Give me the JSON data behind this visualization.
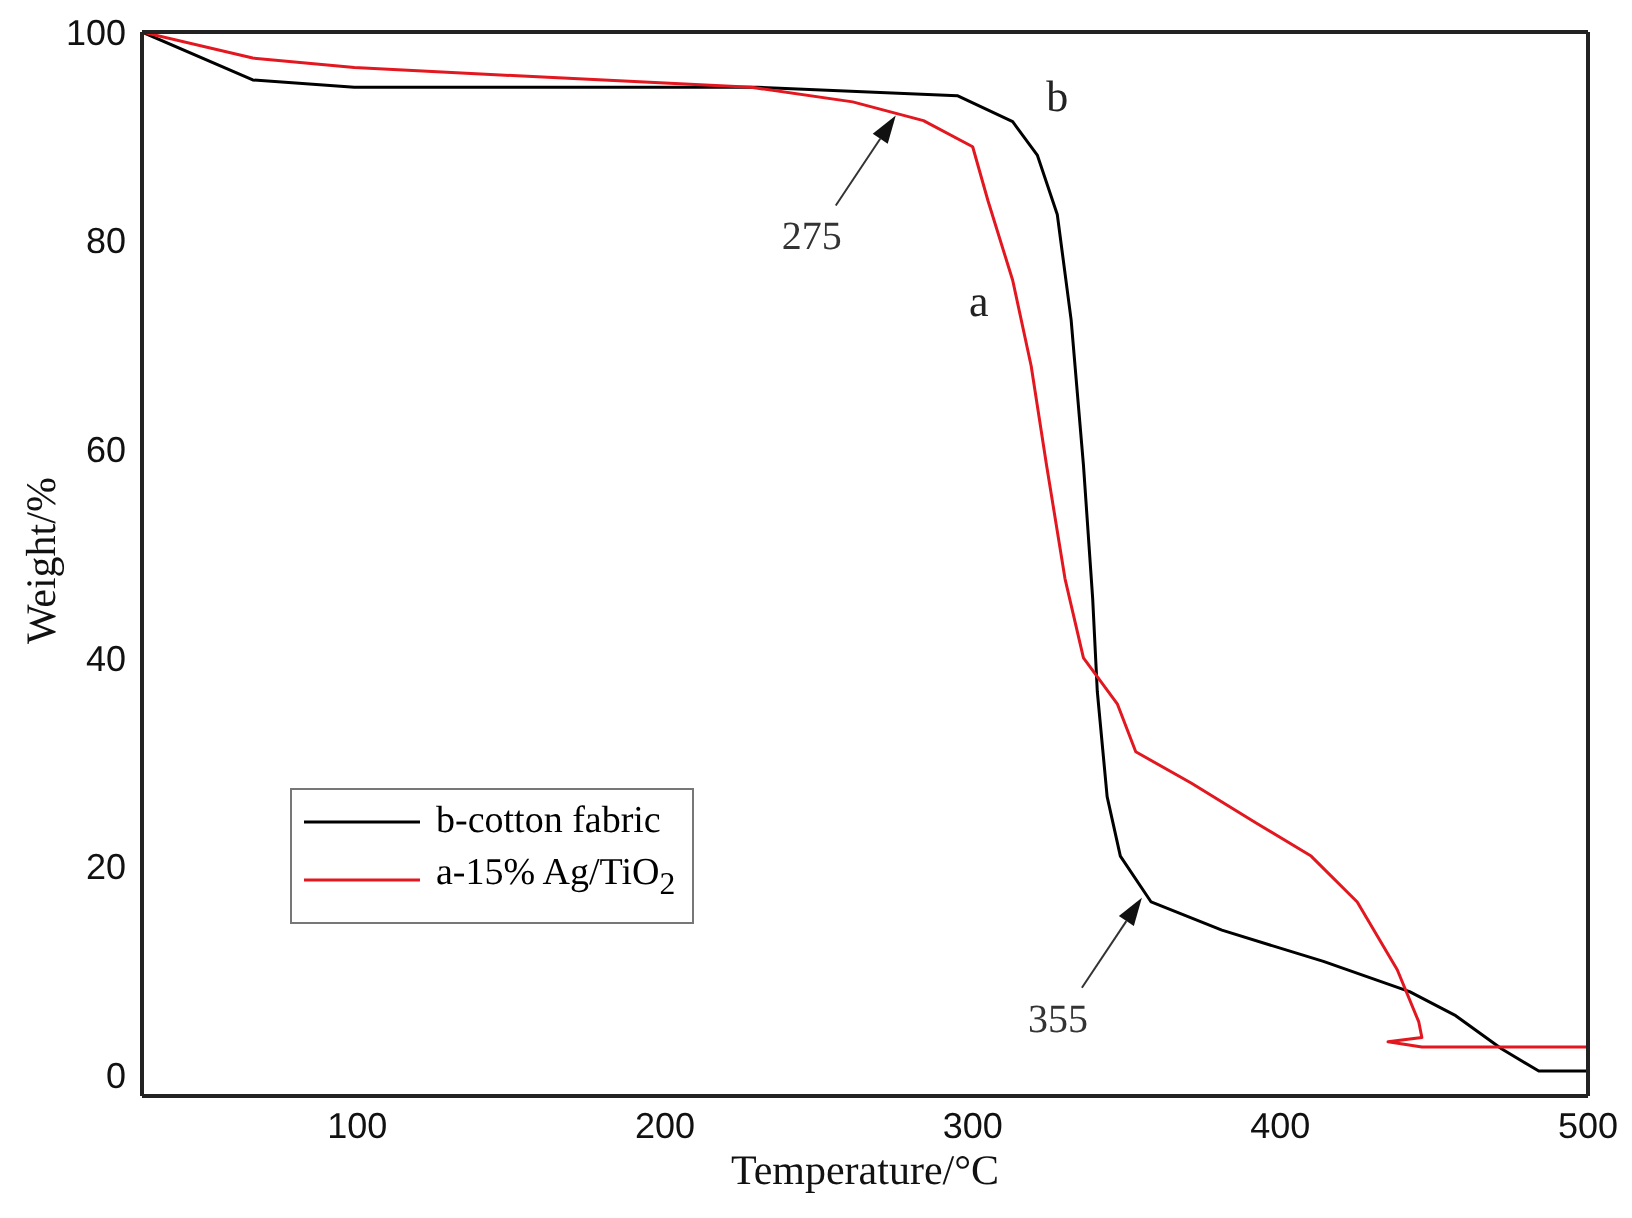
{
  "chart_data": {
    "type": "line",
    "xlabel": "Temperature/°C",
    "ylabel": "Weight/%",
    "xlim": [
      30,
      500
    ],
    "xticks": [
      100,
      200,
      300,
      400,
      500
    ],
    "ylim": [
      -2,
      100
    ],
    "yticks": [
      0,
      20,
      40,
      60,
      80,
      100
    ],
    "grid": false,
    "legend": "bottom left",
    "marker": "none",
    "line_style": "solid",
    "series": [
      {
        "name": "b-cotton fabric",
        "color": "#000000",
        "x": [
          30,
          66,
          99,
          230,
          295,
          313,
          321,
          327.5,
          332,
          336,
          339,
          340.5,
          343.7,
          348,
          358,
          381,
          414,
          442,
          457,
          472,
          484,
          500
        ],
        "values": [
          100,
          95.4,
          94.7,
          94.7,
          93.9,
          91.4,
          88.2,
          82.5,
          72.4,
          58.5,
          45.7,
          36.8,
          26.7,
          21,
          16.6,
          13.9,
          10.9,
          8,
          5.7,
          2.5,
          0.4,
          0.4
        ]
      },
      {
        "name": "a-15% Ag/TiO$_{2}$",
        "color": "#e3171f",
        "x": [
          30,
          66,
          99,
          152,
          228,
          261,
          284,
          300,
          305,
          313,
          319,
          324,
          330,
          336,
          347,
          353,
          371,
          392,
          410,
          425,
          438,
          445,
          446,
          435,
          446,
          500
        ],
        "values": [
          100,
          97.5,
          96.6,
          95.8,
          94.7,
          93.3,
          91.5,
          89,
          83.8,
          76.2,
          68,
          58.5,
          47.6,
          40,
          35.6,
          31,
          28,
          24.2,
          21,
          16.6,
          10.1,
          5.1,
          3.6,
          3.2,
          2.7,
          2.7
        ]
      }
    ],
    "annotations": [
      {
        "text": "275",
        "x": 275,
        "y": 92
      },
      {
        "text": "355",
        "x": 355,
        "y": 17
      },
      {
        "text": "a",
        "x": 313,
        "y": 76.2
      },
      {
        "text": "b",
        "x": 321,
        "y": 88.2
      }
    ]
  }
}
